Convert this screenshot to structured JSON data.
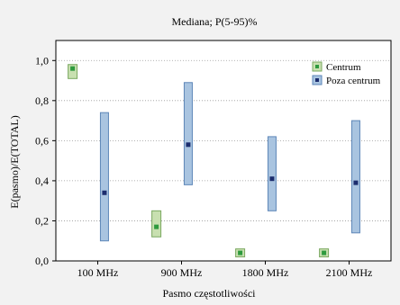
{
  "chart_data": {
    "type": "box",
    "title": "Mediana; P(5-95)%",
    "xlabel": "Pasmo częstotliwości",
    "ylabel": "E(pasmo)/E(TOTAL)",
    "ylim": [
      0,
      1.1
    ],
    "yticks": [
      "0,0",
      "0,2",
      "0,4",
      "0,6",
      "0,8",
      "1,0"
    ],
    "categories": [
      "100 MHz",
      "900 MHz",
      "1800 MHz",
      "2100 MHz"
    ],
    "legend_position": "top-right",
    "series": [
      {
        "name": "Centrum",
        "color_fill": "#c8e0b0",
        "color_edge": "#7aa860",
        "color_marker": "#2e9a3e",
        "median": [
          0.96,
          0.17,
          0.04,
          0.04
        ],
        "p5": [
          0.91,
          0.12,
          0.02,
          0.02
        ],
        "p95": [
          0.98,
          0.25,
          0.06,
          0.06
        ]
      },
      {
        "name": "Poza centrum",
        "color_fill": "#a9c4e0",
        "color_edge": "#5d86b8",
        "color_marker": "#1c2d6e",
        "median": [
          0.34,
          0.58,
          0.41,
          0.39
        ],
        "p5": [
          0.1,
          0.38,
          0.25,
          0.14
        ],
        "p95": [
          0.74,
          0.89,
          0.62,
          0.7
        ]
      }
    ]
  }
}
